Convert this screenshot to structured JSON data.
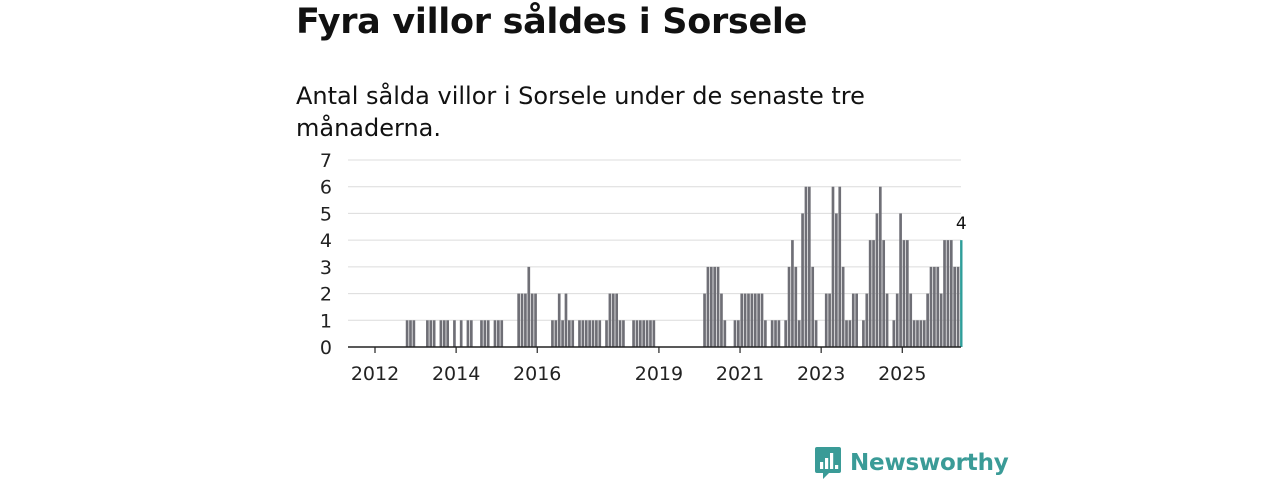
{
  "title": "Fyra villor såldes i Sorsele",
  "subtitle": "Antal sålda villor i Sorsele under de senaste tre månaderna.",
  "brand": {
    "name": "Newsworthy",
    "color": "#3a9b97",
    "icon": "bar-chart-icon"
  },
  "chart_data": {
    "type": "bar",
    "title": "Antal sålda villor i Sorsele under de senaste tre månaderna.",
    "xlabel": "",
    "ylabel": "",
    "ylim": [
      0,
      7
    ],
    "yticks": [
      "0",
      "1",
      "2",
      "3",
      "4",
      "5",
      "6",
      "7"
    ],
    "x_start": "2012-01",
    "xticks": [
      {
        "label": "2012",
        "month_index": 0
      },
      {
        "label": "2014",
        "month_index": 24
      },
      {
        "label": "2016",
        "month_index": 48
      },
      {
        "label": "2019",
        "month_index": 84
      },
      {
        "label": "2021",
        "month_index": 108
      },
      {
        "label": "2023",
        "month_index": 132
      },
      {
        "label": "2025",
        "month_index": 156
      }
    ],
    "bar_color": "#6f6f76",
    "highlight_color": "#2f9e9a",
    "highlight_label": "4",
    "grid": true,
    "series": [
      {
        "name": "Antal sålda villor",
        "values": [
          0,
          0,
          0,
          0,
          0,
          0,
          0,
          0,
          0,
          1,
          1,
          1,
          0,
          0,
          0,
          1,
          1,
          1,
          0,
          1,
          1,
          1,
          0,
          1,
          0,
          1,
          0,
          1,
          1,
          0,
          0,
          1,
          1,
          1,
          0,
          1,
          1,
          1,
          0,
          0,
          0,
          0,
          2,
          2,
          2,
          3,
          2,
          2,
          0,
          0,
          0,
          0,
          1,
          1,
          2,
          1,
          2,
          1,
          1,
          0,
          1,
          1,
          1,
          1,
          1,
          1,
          1,
          0,
          1,
          2,
          2,
          2,
          1,
          1,
          0,
          0,
          1,
          1,
          1,
          1,
          1,
          1,
          1,
          0,
          0,
          0,
          0,
          0,
          0,
          0,
          0,
          0,
          0,
          0,
          0,
          0,
          0,
          2,
          3,
          3,
          3,
          3,
          2,
          1,
          0,
          0,
          1,
          1,
          2,
          2,
          2,
          2,
          2,
          2,
          2,
          1,
          0,
          1,
          1,
          1,
          0,
          1,
          3,
          4,
          3,
          1,
          5,
          6,
          6,
          3,
          1,
          0,
          0,
          2,
          2,
          6,
          5,
          6,
          3,
          1,
          1,
          2,
          2,
          0,
          1,
          2,
          4,
          4,
          5,
          6,
          4,
          2,
          0,
          1,
          2,
          5,
          4,
          4,
          2,
          1,
          1,
          1,
          1,
          2,
          3,
          3,
          3,
          2,
          4,
          4,
          4,
          3,
          3,
          4
        ]
      }
    ]
  }
}
